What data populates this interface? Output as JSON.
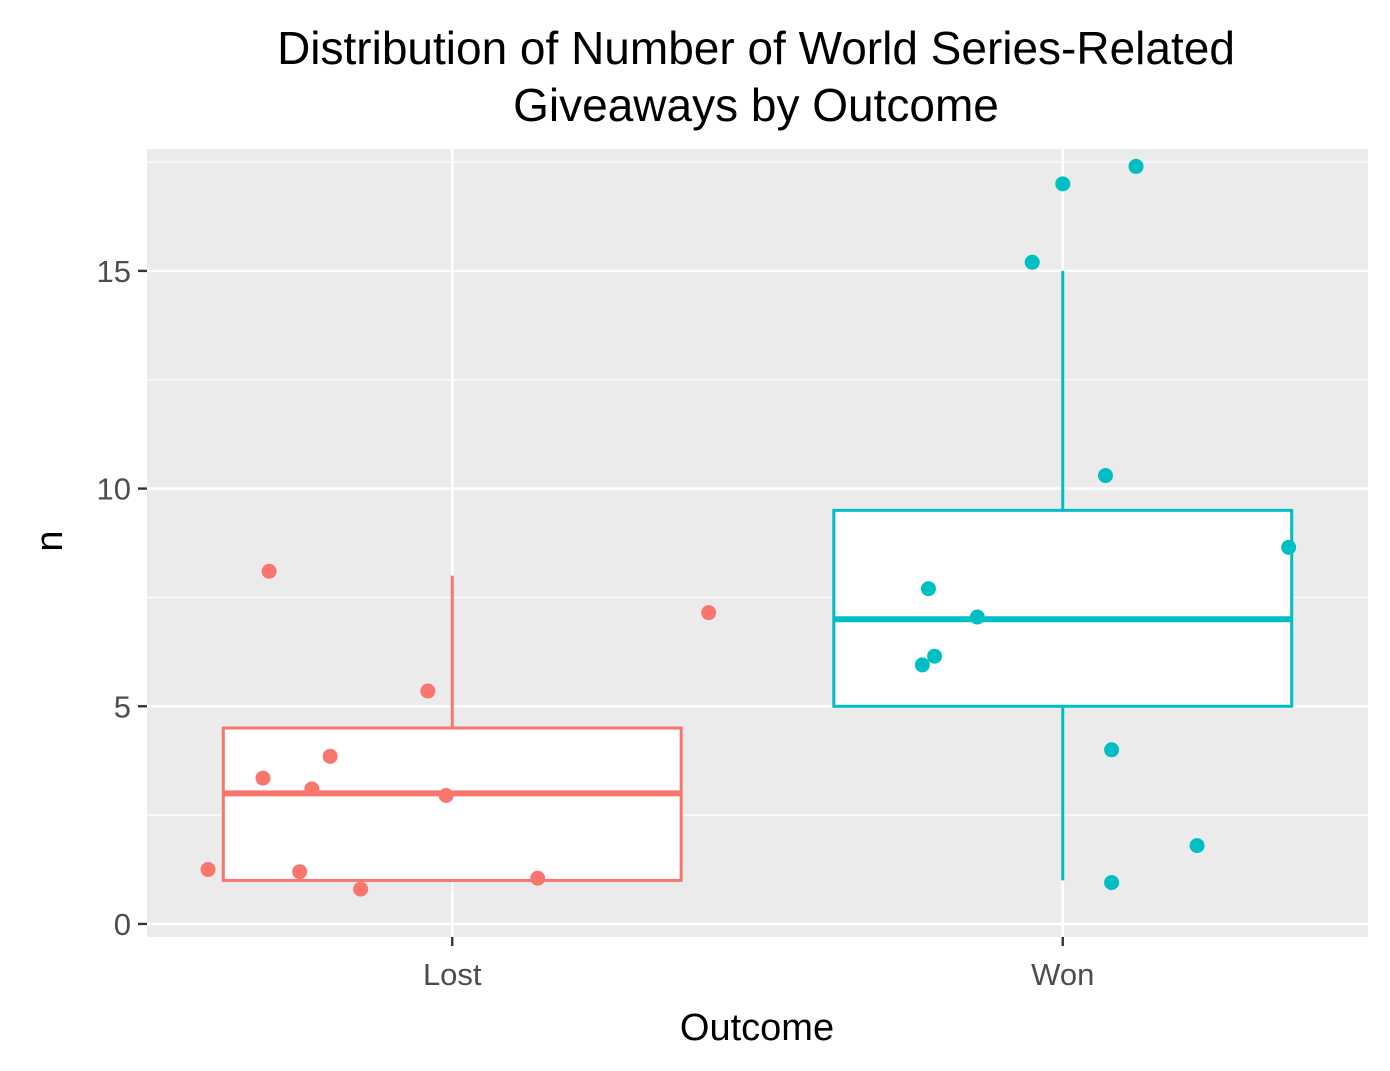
{
  "chart_data": {
    "type": "box",
    "title_lines": [
      "Distribution of Number of World Series-Related",
      "Giveaways by Outcome"
    ],
    "xlabel": "Outcome",
    "ylabel": "n",
    "categories": [
      "Lost",
      "Won"
    ],
    "ylim": [
      -0.3,
      17.8
    ],
    "yticks": [
      0,
      5,
      10,
      15
    ],
    "ytick_labels": [
      "0",
      "5",
      "10",
      "15"
    ],
    "grid": true,
    "legend": "none",
    "colors": {
      "Lost": "#f8766d",
      "Won": "#00bfc4",
      "panel": "#ebebeb",
      "grid": "#ffffff"
    },
    "boxes": [
      {
        "category": "Lost",
        "whisker_low": 1,
        "q1": 1,
        "median": 3,
        "q3": 4.5,
        "whisker_high": 8
      },
      {
        "category": "Won",
        "whisker_low": 1,
        "q1": 5,
        "median": 7,
        "q3": 9.5,
        "whisker_high": 15
      }
    ],
    "points": [
      {
        "category": "Lost",
        "jitter": -0.3,
        "y": 8.1
      },
      {
        "category": "Lost",
        "jitter": 0.42,
        "y": 7.15
      },
      {
        "category": "Lost",
        "jitter": -0.04,
        "y": 5.35
      },
      {
        "category": "Lost",
        "jitter": -0.2,
        "y": 3.85
      },
      {
        "category": "Lost",
        "jitter": -0.31,
        "y": 3.35
      },
      {
        "category": "Lost",
        "jitter": -0.23,
        "y": 3.1
      },
      {
        "category": "Lost",
        "jitter": -0.01,
        "y": 2.95
      },
      {
        "category": "Lost",
        "jitter": -0.4,
        "y": 1.25
      },
      {
        "category": "Lost",
        "jitter": -0.25,
        "y": 1.2
      },
      {
        "category": "Lost",
        "jitter": 0.14,
        "y": 1.05
      },
      {
        "category": "Lost",
        "jitter": -0.15,
        "y": 0.8
      },
      {
        "category": "Won",
        "jitter": 0.12,
        "y": 17.4
      },
      {
        "category": "Won",
        "jitter": 0.0,
        "y": 17.0
      },
      {
        "category": "Won",
        "jitter": -0.05,
        "y": 15.2
      },
      {
        "category": "Won",
        "jitter": 0.07,
        "y": 10.3
      },
      {
        "category": "Won",
        "jitter": 0.37,
        "y": 8.65
      },
      {
        "category": "Won",
        "jitter": -0.22,
        "y": 7.7
      },
      {
        "category": "Won",
        "jitter": -0.14,
        "y": 7.05
      },
      {
        "category": "Won",
        "jitter": -0.21,
        "y": 6.15
      },
      {
        "category": "Won",
        "jitter": -0.23,
        "y": 5.95
      },
      {
        "category": "Won",
        "jitter": 0.08,
        "y": 4.0
      },
      {
        "category": "Won",
        "jitter": 0.22,
        "y": 1.8
      },
      {
        "category": "Won",
        "jitter": 0.08,
        "y": 0.95
      }
    ]
  }
}
